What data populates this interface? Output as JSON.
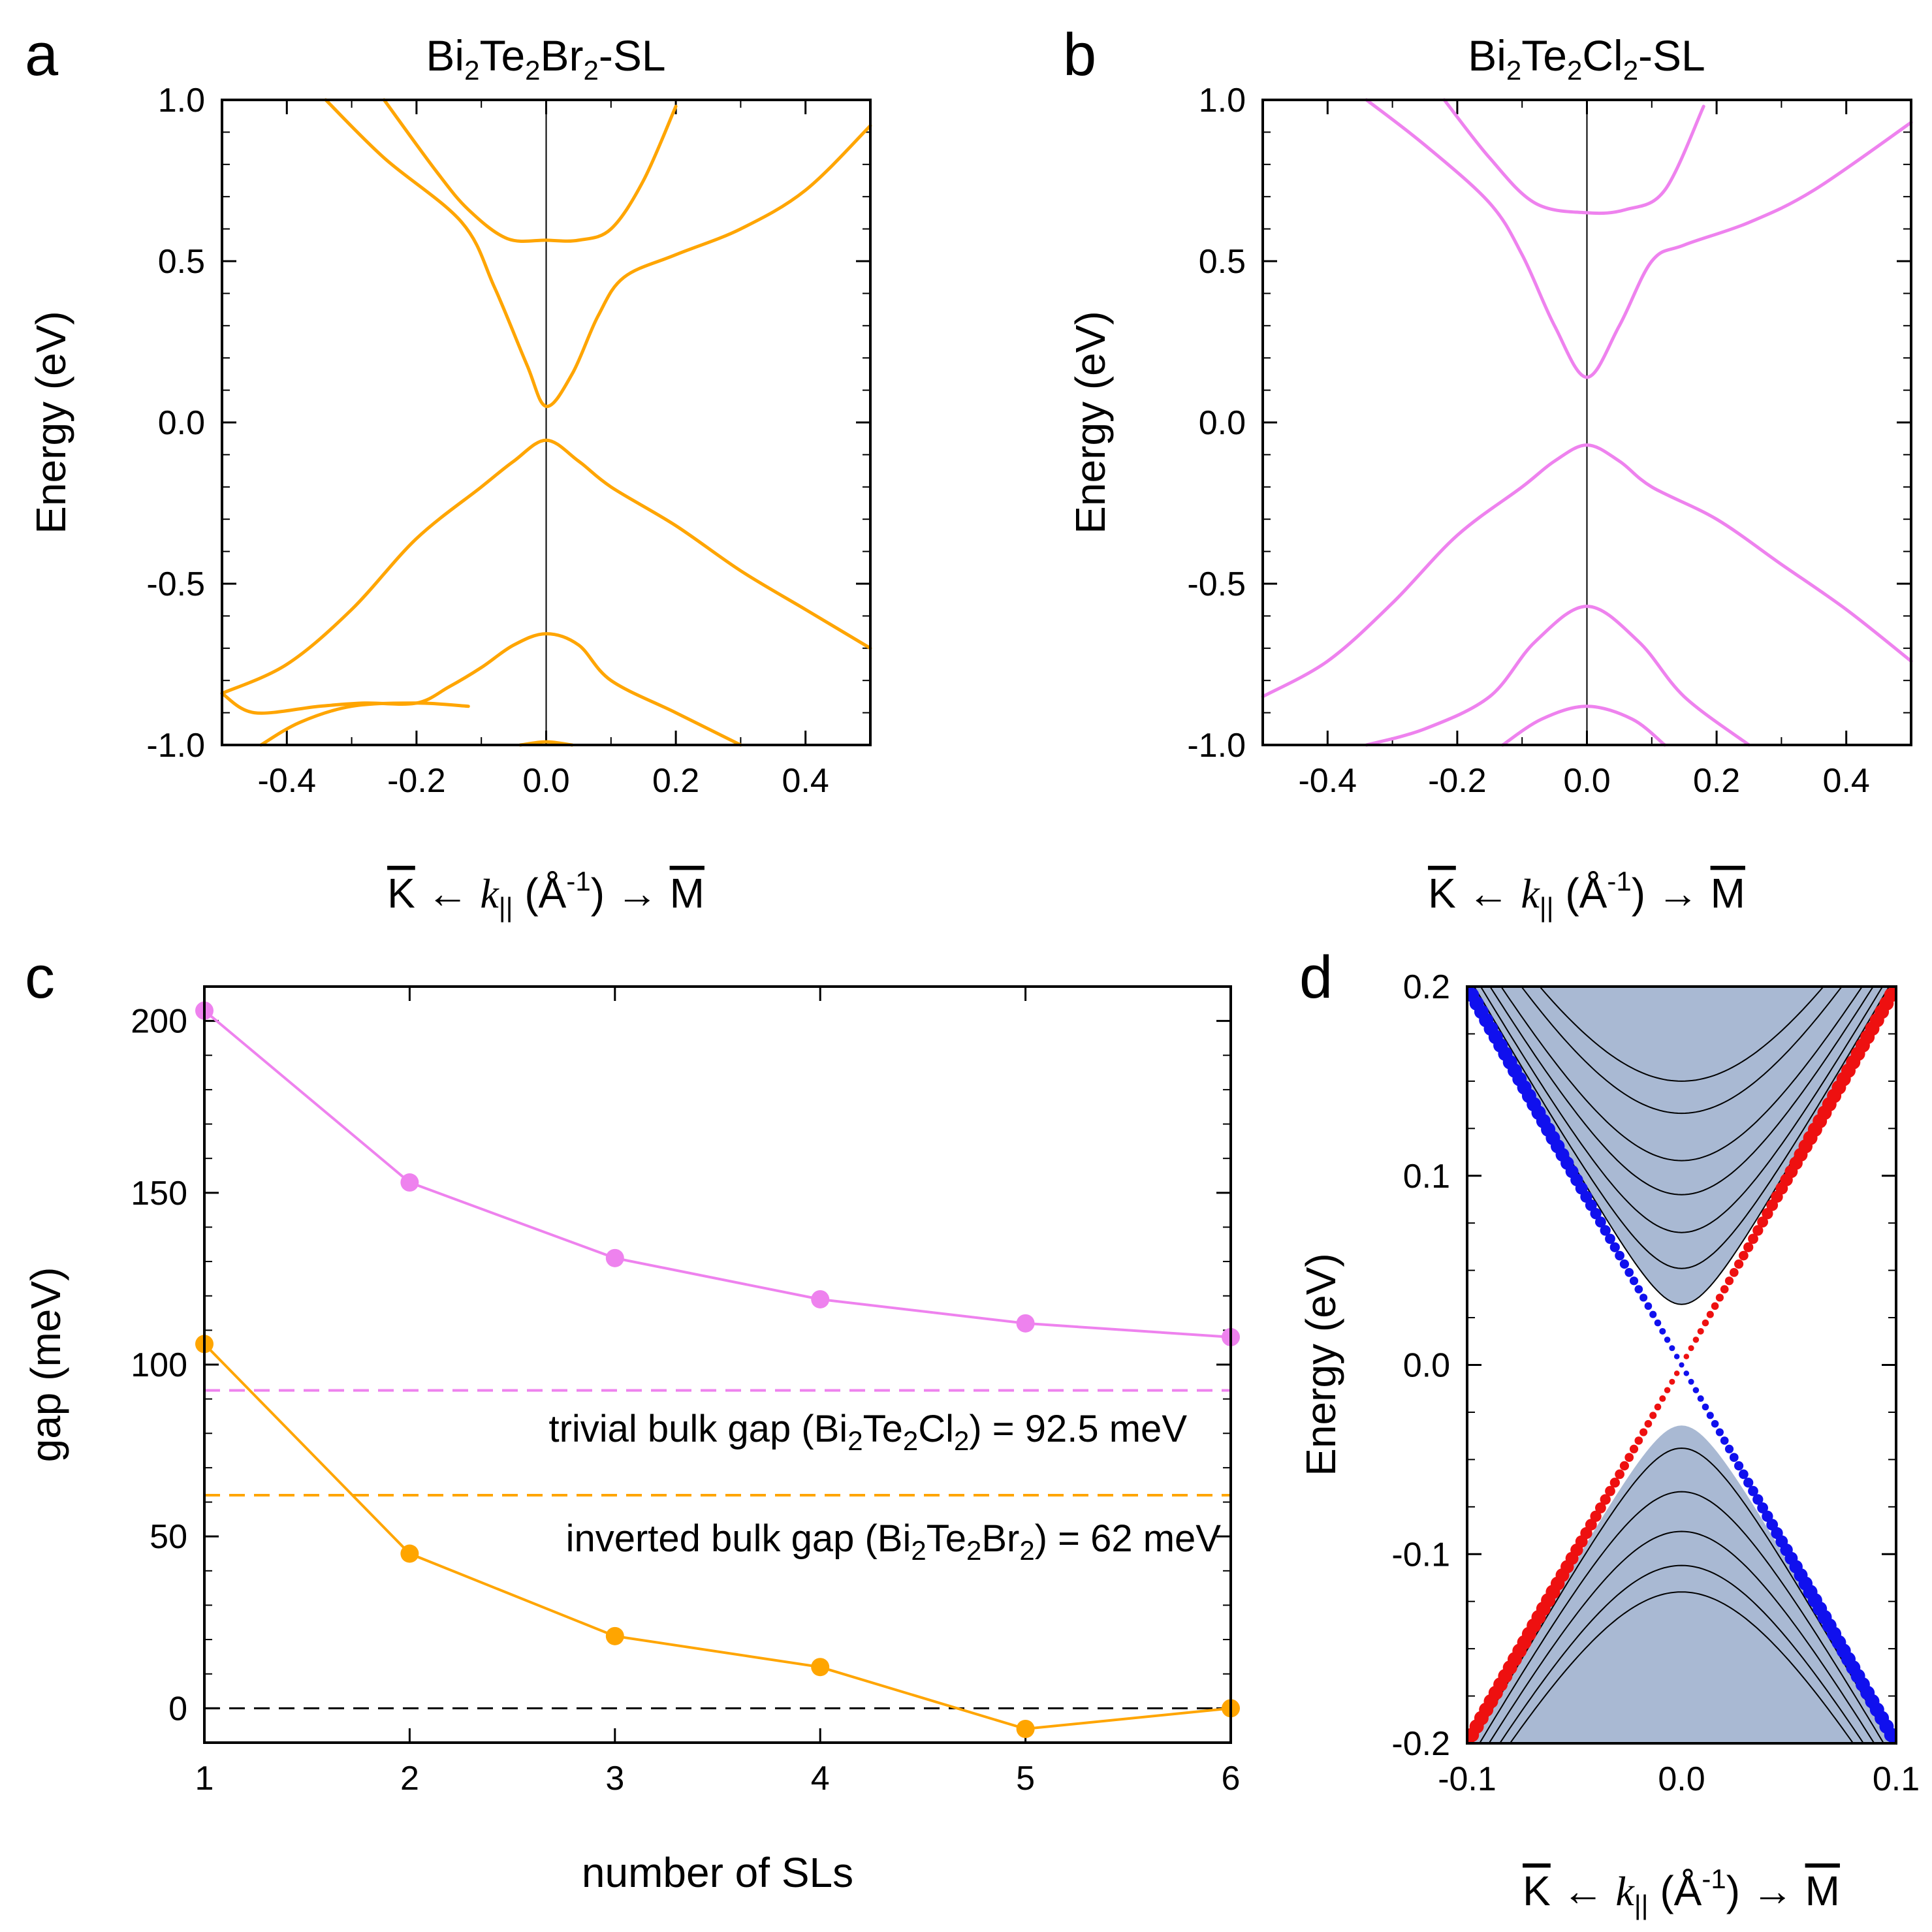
{
  "colors": {
    "orange": "#ffa500",
    "violet": "#ee82ee",
    "blue": "#1010ee",
    "red": "#ee1010",
    "band_fill": "#a9b9d3"
  },
  "chart_data": [
    {
      "panel": "a",
      "type": "line",
      "title": "Bi2Te2Br2-SL",
      "title_parts": {
        "p1": "Bi",
        "s1": "2",
        "p2": "Te",
        "s2": "2",
        "p3": "Br",
        "s3": "2",
        "p4": "-SL"
      },
      "xlabel": "K ← k|| (Å-1) → M",
      "xlabel_parts": {
        "k": "K",
        "arrow_left": "←",
        "kvar": "k",
        "par": "||",
        "unit_open": " (Å",
        "exp": "-1",
        "unit_close": ") →",
        "m": "M"
      },
      "ylabel": "Energy (eV)",
      "xlim": [
        -0.5,
        0.5
      ],
      "ylim": [
        -1.0,
        1.0
      ],
      "xticks": [
        -0.4,
        -0.2,
        0.0,
        0.2,
        0.4
      ],
      "xtick_labels": [
        "-0.4",
        "-0.2",
        "0.0",
        "0.2",
        "0.4"
      ],
      "yticks": [
        -1.0,
        -0.5,
        0.0,
        0.5,
        1.0
      ],
      "ytick_labels": [
        "-1.0",
        "-0.5",
        "0.0",
        "0.5",
        "1.0"
      ],
      "color": "orange",
      "series": [
        {
          "name": "band-c1",
          "points": [
            [
              -0.34,
              1.0
            ],
            [
              -0.25,
              0.82
            ],
            [
              -0.13,
              0.62
            ],
            [
              -0.08,
              0.42
            ],
            [
              -0.03,
              0.18
            ],
            [
              0.0,
              0.05
            ],
            [
              0.04,
              0.15
            ],
            [
              0.08,
              0.33
            ],
            [
              0.12,
              0.45
            ],
            [
              0.2,
              0.52
            ],
            [
              0.3,
              0.6
            ],
            [
              0.4,
              0.72
            ],
            [
              0.5,
              0.92
            ]
          ]
        },
        {
          "name": "band-c2",
          "points": [
            [
              -0.25,
              1.0
            ],
            [
              -0.17,
              0.78
            ],
            [
              -0.12,
              0.66
            ],
            [
              -0.06,
              0.57
            ],
            [
              0.0,
              0.565
            ],
            [
              0.05,
              0.565
            ],
            [
              0.1,
              0.6
            ],
            [
              0.15,
              0.75
            ],
            [
              0.2,
              0.98
            ]
          ]
        },
        {
          "name": "band-v1",
          "points": [
            [
              -0.5,
              -0.84
            ],
            [
              -0.4,
              -0.75
            ],
            [
              -0.3,
              -0.58
            ],
            [
              -0.2,
              -0.36
            ],
            [
              -0.1,
              -0.2
            ],
            [
              -0.05,
              -0.12
            ],
            [
              0.0,
              -0.055
            ],
            [
              0.05,
              -0.12
            ],
            [
              0.1,
              -0.2
            ],
            [
              0.2,
              -0.32
            ],
            [
              0.3,
              -0.46
            ],
            [
              0.4,
              -0.58
            ],
            [
              0.5,
              -0.7
            ]
          ]
        },
        {
          "name": "band-v2",
          "points": [
            [
              -0.5,
              -0.84
            ],
            [
              -0.45,
              -0.9
            ],
            [
              -0.35,
              -0.88
            ],
            [
              -0.28,
              -0.87
            ],
            [
              -0.2,
              -0.87
            ],
            [
              -0.15,
              -0.82
            ],
            [
              -0.1,
              -0.76
            ],
            [
              -0.05,
              -0.69
            ],
            [
              0.0,
              -0.655
            ],
            [
              0.05,
              -0.69
            ],
            [
              0.1,
              -0.8
            ],
            [
              0.2,
              -0.9
            ],
            [
              0.3,
              -1.0
            ]
          ]
        },
        {
          "name": "band-v3",
          "points": [
            [
              -0.44,
              -1.0
            ],
            [
              -0.38,
              -0.93
            ],
            [
              -0.3,
              -0.88
            ],
            [
              -0.2,
              -0.87
            ],
            [
              -0.12,
              -0.88
            ]
          ]
        },
        {
          "name": "band-v4",
          "points": [
            [
              -0.04,
              -1.0
            ],
            [
              0.0,
              -0.99
            ],
            [
              0.04,
              -1.0
            ]
          ]
        }
      ]
    },
    {
      "panel": "b",
      "type": "line",
      "title": "Bi2Te2Cl2-SL",
      "title_parts": {
        "p1": "Bi",
        "s1": "2",
        "p2": "Te",
        "s2": "2",
        "p3": "Cl",
        "s3": "2",
        "p4": "-SL"
      },
      "xlabel": "K ← k|| (Å-1) → M",
      "xlabel_parts": {
        "k": "K",
        "arrow_left": "←",
        "kvar": "k",
        "par": "||",
        "unit_open": " (Å",
        "exp": "-1",
        "unit_close": ") →",
        "m": "M"
      },
      "ylabel": "Energy (eV)",
      "xlim": [
        -0.5,
        0.5
      ],
      "ylim": [
        -1.0,
        1.0
      ],
      "xticks": [
        -0.4,
        -0.2,
        0.0,
        0.2,
        0.4
      ],
      "xtick_labels": [
        "-0.4",
        "-0.2",
        "0.0",
        "0.2",
        "0.4"
      ],
      "yticks": [
        -1.0,
        -0.5,
        0.0,
        0.5,
        1.0
      ],
      "ytick_labels": [
        "-1.0",
        "-0.5",
        "0.0",
        "0.5",
        "1.0"
      ],
      "color": "violet",
      "series": [
        {
          "name": "band-c1",
          "points": [
            [
              -0.34,
              1.0
            ],
            [
              -0.25,
              0.86
            ],
            [
              -0.15,
              0.68
            ],
            [
              -0.1,
              0.52
            ],
            [
              -0.05,
              0.3
            ],
            [
              0.0,
              0.14
            ],
            [
              0.05,
              0.3
            ],
            [
              0.1,
              0.5
            ],
            [
              0.15,
              0.55
            ],
            [
              0.25,
              0.62
            ],
            [
              0.35,
              0.72
            ],
            [
              0.5,
              0.93
            ]
          ]
        },
        {
          "name": "band-c2",
          "points": [
            [
              -0.22,
              1.0
            ],
            [
              -0.15,
              0.82
            ],
            [
              -0.08,
              0.68
            ],
            [
              0.0,
              0.65
            ],
            [
              0.06,
              0.66
            ],
            [
              0.12,
              0.72
            ],
            [
              0.18,
              0.98
            ]
          ]
        },
        {
          "name": "band-v1",
          "points": [
            [
              -0.5,
              -0.85
            ],
            [
              -0.4,
              -0.74
            ],
            [
              -0.3,
              -0.56
            ],
            [
              -0.2,
              -0.35
            ],
            [
              -0.1,
              -0.2
            ],
            [
              -0.05,
              -0.12
            ],
            [
              0.0,
              -0.07
            ],
            [
              0.05,
              -0.12
            ],
            [
              0.1,
              -0.2
            ],
            [
              0.2,
              -0.3
            ],
            [
              0.3,
              -0.44
            ],
            [
              0.4,
              -0.58
            ],
            [
              0.5,
              -0.74
            ]
          ]
        },
        {
          "name": "band-v2",
          "points": [
            [
              -0.34,
              -1.0
            ],
            [
              -0.25,
              -0.95
            ],
            [
              -0.15,
              -0.85
            ],
            [
              -0.08,
              -0.68
            ],
            [
              0.0,
              -0.57
            ],
            [
              0.08,
              -0.68
            ],
            [
              0.15,
              -0.85
            ],
            [
              0.25,
              -1.0
            ]
          ]
        },
        {
          "name": "band-v3",
          "points": [
            [
              -0.13,
              -1.0
            ],
            [
              -0.07,
              -0.92
            ],
            [
              0.0,
              -0.88
            ],
            [
              0.07,
              -0.92
            ],
            [
              0.12,
              -1.0
            ]
          ]
        }
      ]
    },
    {
      "panel": "c",
      "type": "line",
      "xlabel": "number of SLs",
      "ylabel": "gap (meV)",
      "xlim": [
        1,
        6
      ],
      "ylim": [
        -10,
        210
      ],
      "xticks": [
        1,
        2,
        3,
        4,
        5,
        6
      ],
      "xtick_labels": [
        "1",
        "2",
        "3",
        "4",
        "5",
        "6"
      ],
      "yticks": [
        0,
        50,
        100,
        150,
        200
      ],
      "ytick_labels": [
        "0",
        "50",
        "100",
        "150",
        "200"
      ],
      "x": [
        1,
        2,
        3,
        4,
        5,
        6
      ],
      "series": [
        {
          "name": "Bi2Te2Cl2",
          "color": "violet",
          "values": [
            203,
            153,
            131,
            119,
            112,
            108
          ]
        },
        {
          "name": "Bi2Te2Br2",
          "color": "orange",
          "values": [
            106,
            45,
            21,
            12,
            -6,
            0
          ]
        }
      ],
      "reference_lines": [
        {
          "name": "trivial",
          "value": 92.5,
          "color": "violet",
          "style": "dashed"
        },
        {
          "name": "inverted",
          "value": 62,
          "color": "orange",
          "style": "dashed"
        },
        {
          "name": "zero",
          "value": 0,
          "color": "#000000",
          "style": "dashed"
        }
      ],
      "annotations": {
        "trivial": {
          "a": "trivial bulk gap (Bi",
          "s1": "2",
          "b": "Te",
          "s2": "2",
          "c": "Cl",
          "s3": "2",
          "d": ") = 92.5 meV"
        },
        "inverted": {
          "a": "inverted bulk gap (Bi",
          "s1": "2",
          "b": "Te",
          "s2": "2",
          "c": "Br",
          "s3": "2",
          "d": ") = 62 meV"
        }
      }
    },
    {
      "panel": "d",
      "type": "line",
      "xlabel": "K ← k|| (Å-1) → M",
      "xlabel_parts": {
        "k": "K",
        "arrow_left": "←",
        "kvar": "k",
        "par": "||",
        "unit_open": " (Å",
        "exp": "-1",
        "unit_close": ") →",
        "m": "M"
      },
      "ylabel": "Energy (eV)",
      "xlim": [
        -0.1,
        0.1
      ],
      "ylim": [
        -0.2,
        0.2
      ],
      "xticks": [
        -0.1,
        0.0,
        0.1
      ],
      "xtick_labels": [
        "-0.1",
        "0.0",
        "0.1"
      ],
      "yticks": [
        -0.2,
        -0.1,
        0.0,
        0.1,
        0.2
      ],
      "ytick_labels": [
        "-0.2",
        "-0.1",
        "0.0",
        "0.1",
        "0.2"
      ],
      "surface_states": {
        "velocity_eV_A": 2.0,
        "blue": "E = -2.0 k",
        "red": "E = 2.0 k"
      },
      "conduction_band_minima": [
        0.032,
        0.051,
        0.07,
        0.09,
        0.108,
        0.133,
        0.15
      ],
      "valence_band_maxima": [
        -0.044,
        -0.067,
        -0.088,
        -0.106,
        -0.12
      ],
      "conduction_fill_edge": 0.032,
      "valence_fill_edge": -0.032
    }
  ],
  "panel_letters": [
    "a",
    "b",
    "c",
    "d"
  ]
}
